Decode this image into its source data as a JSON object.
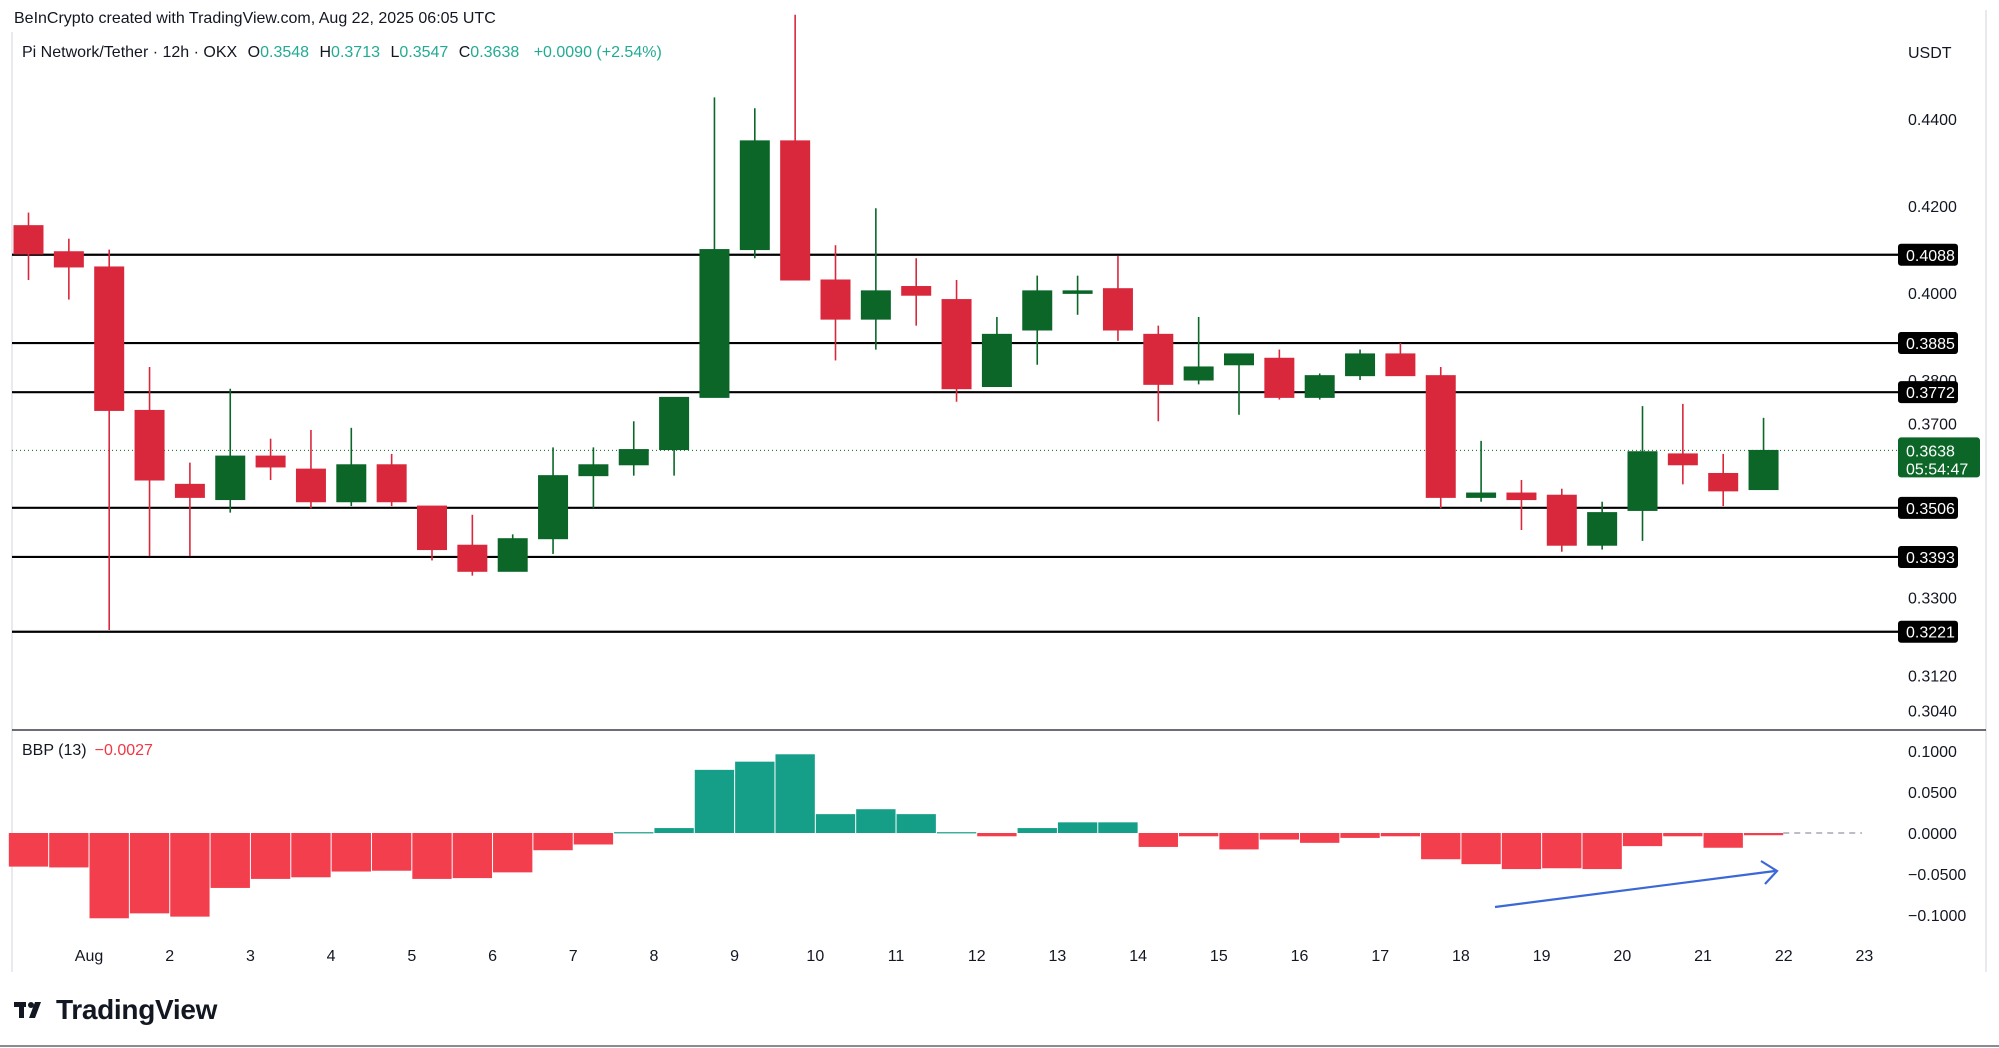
{
  "header": {
    "credit": "BeInCrypto created with TradingView.com, Aug 22, 2025 06:05 UTC",
    "symbol": "Pi Network/Tether · 12h · OKX",
    "o_label": "O",
    "o_value": "0.3548",
    "h_label": "H",
    "h_value": "0.3713",
    "l_label": "L",
    "l_value": "0.3547",
    "c_label": "C",
    "c_value": "0.3638",
    "change": "+0.0090 (+2.54%)",
    "currency": "USDT"
  },
  "indicator": {
    "name": "BBP (13)",
    "value": "−0.0027"
  },
  "brand": {
    "name": "TradingView"
  },
  "colors": {
    "up": "#0b6628",
    "down": "#d9283c",
    "bbp_pos": "#159e88",
    "bbp_neg": "#f33e4e",
    "arrow": "#3a68d6",
    "last_price_bg": "#0b6628"
  },
  "chart_data": [
    {
      "type": "candlestick",
      "title": "Pi Network/Tether · 12h · OKX",
      "y_axis_ticks": [
        0.304,
        0.312,
        0.33,
        0.37,
        0.38,
        0.4,
        0.42,
        0.44
      ],
      "ylim": [
        0.2995,
        0.4605
      ],
      "x_tick_labels": [
        "Aug",
        "2",
        "3",
        "4",
        "5",
        "6",
        "7",
        "8",
        "9",
        "10",
        "11",
        "12",
        "13",
        "14",
        "15",
        "16",
        "17",
        "18",
        "19",
        "20",
        "21",
        "22",
        "23"
      ],
      "x_tick_slots": [
        1.5,
        3.5,
        5.5,
        7.5,
        9.5,
        11.5,
        13.5,
        15.5,
        17.5,
        19.5,
        21.5,
        23.5,
        25.5,
        27.5,
        29.5,
        31.5,
        33.5,
        35.5,
        37.5,
        39.5,
        41.5,
        43.5,
        45.5
      ],
      "candles": [
        {
          "o": 0.4155,
          "h": 0.4185,
          "l": 0.403,
          "c": 0.409
        },
        {
          "o": 0.4095,
          "h": 0.4125,
          "l": 0.3985,
          "c": 0.406
        },
        {
          "o": 0.406,
          "h": 0.41,
          "l": 0.3225,
          "c": 0.373
        },
        {
          "o": 0.373,
          "h": 0.383,
          "l": 0.3395,
          "c": 0.357
        },
        {
          "o": 0.356,
          "h": 0.361,
          "l": 0.3395,
          "c": 0.353
        },
        {
          "o": 0.3525,
          "h": 0.378,
          "l": 0.3495,
          "c": 0.3625
        },
        {
          "o": 0.3625,
          "h": 0.3665,
          "l": 0.357,
          "c": 0.36
        },
        {
          "o": 0.3595,
          "h": 0.3685,
          "l": 0.3505,
          "c": 0.352
        },
        {
          "o": 0.352,
          "h": 0.369,
          "l": 0.351,
          "c": 0.3605
        },
        {
          "o": 0.3605,
          "h": 0.363,
          "l": 0.351,
          "c": 0.352
        },
        {
          "o": 0.351,
          "h": 0.351,
          "l": 0.3385,
          "c": 0.341
        },
        {
          "o": 0.342,
          "h": 0.349,
          "l": 0.335,
          "c": 0.336
        },
        {
          "o": 0.336,
          "h": 0.3445,
          "l": 0.337,
          "c": 0.3435
        },
        {
          "o": 0.3435,
          "h": 0.3645,
          "l": 0.34,
          "c": 0.358
        },
        {
          "o": 0.358,
          "h": 0.3645,
          "l": 0.3505,
          "c": 0.3605
        },
        {
          "o": 0.3605,
          "h": 0.3705,
          "l": 0.358,
          "c": 0.364
        },
        {
          "o": 0.364,
          "h": 0.376,
          "l": 0.358,
          "c": 0.376
        },
        {
          "o": 0.376,
          "h": 0.445,
          "l": 0.377,
          "c": 0.41
        },
        {
          "o": 0.41,
          "h": 0.4425,
          "l": 0.408,
          "c": 0.435
        },
        {
          "o": 0.435,
          "h": 0.464,
          "l": 0.403,
          "c": 0.403
        },
        {
          "o": 0.403,
          "h": 0.411,
          "l": 0.3845,
          "c": 0.394
        },
        {
          "o": 0.394,
          "h": 0.4195,
          "l": 0.387,
          "c": 0.4005
        },
        {
          "o": 0.4015,
          "h": 0.408,
          "l": 0.3925,
          "c": 0.3995
        },
        {
          "o": 0.3985,
          "h": 0.403,
          "l": 0.375,
          "c": 0.378
        },
        {
          "o": 0.3785,
          "h": 0.3945,
          "l": 0.3785,
          "c": 0.3905
        },
        {
          "o": 0.3915,
          "h": 0.404,
          "l": 0.3835,
          "c": 0.4005
        },
        {
          "o": 0.4005,
          "h": 0.404,
          "l": 0.395,
          "c": 0.4005
        },
        {
          "o": 0.401,
          "h": 0.4085,
          "l": 0.389,
          "c": 0.3915
        },
        {
          "o": 0.3905,
          "h": 0.3925,
          "l": 0.3705,
          "c": 0.379
        },
        {
          "o": 0.38,
          "h": 0.3945,
          "l": 0.379,
          "c": 0.383
        },
        {
          "o": 0.3835,
          "h": 0.385,
          "l": 0.372,
          "c": 0.386
        },
        {
          "o": 0.385,
          "h": 0.387,
          "l": 0.3755,
          "c": 0.376
        },
        {
          "o": 0.376,
          "h": 0.3815,
          "l": 0.3755,
          "c": 0.381
        },
        {
          "o": 0.381,
          "h": 0.387,
          "l": 0.38,
          "c": 0.386
        },
        {
          "o": 0.386,
          "h": 0.3885,
          "l": 0.3815,
          "c": 0.381
        },
        {
          "o": 0.381,
          "h": 0.383,
          "l": 0.3505,
          "c": 0.353
        },
        {
          "o": 0.353,
          "h": 0.366,
          "l": 0.352,
          "c": 0.354
        },
        {
          "o": 0.354,
          "h": 0.357,
          "l": 0.3455,
          "c": 0.3525
        },
        {
          "o": 0.3535,
          "h": 0.355,
          "l": 0.3405,
          "c": 0.342
        },
        {
          "o": 0.342,
          "h": 0.352,
          "l": 0.341,
          "c": 0.3495
        },
        {
          "o": 0.35,
          "h": 0.374,
          "l": 0.343,
          "c": 0.3635
        },
        {
          "o": 0.363,
          "h": 0.3745,
          "l": 0.356,
          "c": 0.3605
        },
        {
          "o": 0.3585,
          "h": 0.363,
          "l": 0.351,
          "c": 0.3545
        },
        {
          "o": 0.3548,
          "h": 0.3713,
          "l": 0.3547,
          "c": 0.3638
        }
      ],
      "horizontal_lines": [
        "0.4088",
        "0.3885",
        "0.3772",
        "0.3506",
        "0.3393",
        "0.3221"
      ],
      "last_price": {
        "value": "0.3638",
        "timer": "05:54:47"
      }
    },
    {
      "type": "bar",
      "title": "BBP (13)",
      "y_axis_ticks": [
        "0.1000",
        "0.0500",
        "0.0000",
        "−0.0500",
        "−0.1000"
      ],
      "ylim": [
        -0.125,
        0.11
      ],
      "values": [
        -0.041,
        -0.042,
        -0.104,
        -0.098,
        -0.102,
        -0.067,
        -0.056,
        -0.054,
        -0.047,
        -0.046,
        -0.056,
        -0.055,
        -0.048,
        -0.021,
        -0.014,
        0.001,
        0.006,
        0.077,
        0.087,
        0.096,
        0.023,
        0.029,
        0.023,
        0.001,
        -0.004,
        0.006,
        0.013,
        0.013,
        -0.017,
        -0.004,
        -0.02,
        -0.008,
        -0.012,
        -0.006,
        -0.004,
        -0.032,
        -0.038,
        -0.044,
        -0.043,
        -0.044,
        -0.016,
        -0.004,
        -0.018,
        -0.0027
      ]
    }
  ]
}
